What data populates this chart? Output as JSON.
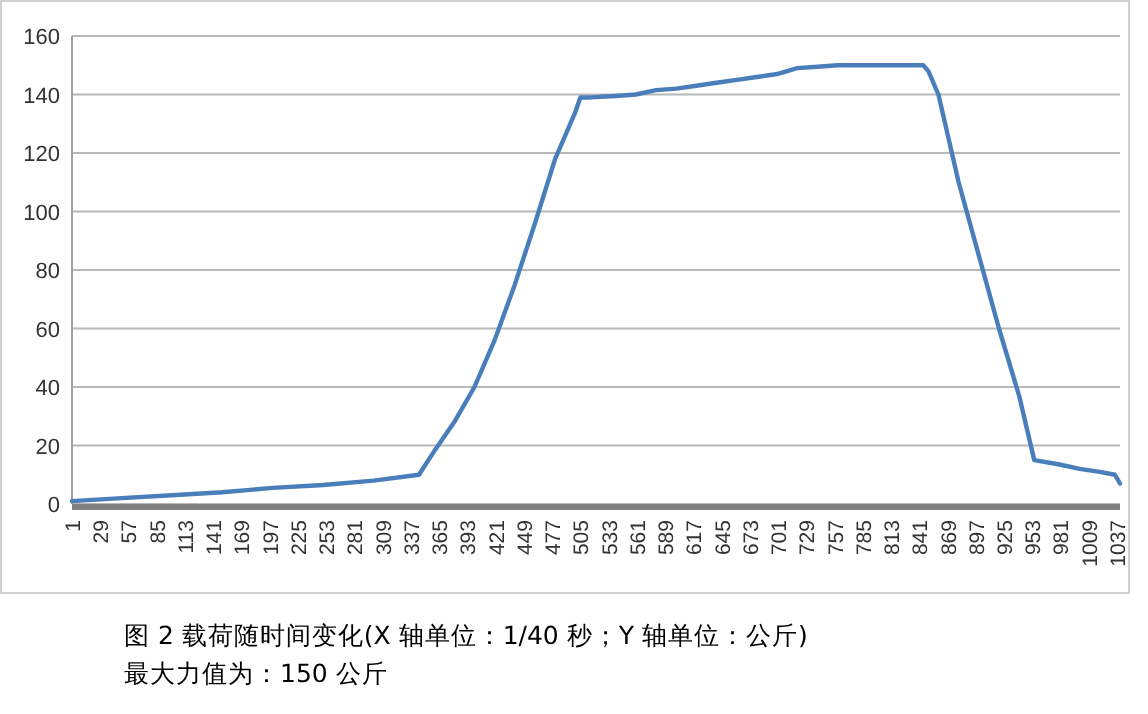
{
  "chart_data": {
    "type": "line",
    "x": [
      1,
      50,
      100,
      150,
      200,
      250,
      300,
      345,
      360,
      380,
      400,
      420,
      440,
      460,
      480,
      500,
      505,
      515,
      540,
      560,
      580,
      600,
      620,
      640,
      660,
      680,
      700,
      710,
      720,
      740,
      760,
      800,
      845,
      850,
      860,
      880,
      900,
      920,
      940,
      955,
      980,
      1000,
      1020,
      1035,
      1040
    ],
    "series": [
      {
        "color": "#4a7ebb",
        "values": [
          1,
          2,
          3,
          4,
          5.5,
          6.5,
          8,
          10,
          18,
          28,
          40,
          56,
          75,
          96,
          118,
          134,
          139,
          139,
          139.5,
          140,
          141.5,
          142,
          143,
          144,
          145,
          146,
          147,
          148,
          149,
          149.5,
          150,
          150,
          150,
          148,
          140,
          110,
          85,
          60,
          37,
          15,
          13.5,
          12,
          11,
          10,
          7
        ]
      }
    ],
    "ylim": [
      0,
      160
    ],
    "yticks": [
      0,
      20,
      40,
      60,
      80,
      100,
      120,
      140,
      160
    ],
    "xlim": [
      1,
      1040
    ],
    "xticks": [
      1,
      29,
      57,
      85,
      113,
      141,
      169,
      197,
      225,
      253,
      281,
      309,
      337,
      365,
      393,
      421,
      449,
      477,
      505,
      533,
      561,
      589,
      617,
      645,
      673,
      701,
      729,
      757,
      785,
      813,
      841,
      869,
      897,
      925,
      953,
      981,
      1009,
      1037
    ],
    "grid": "y",
    "marker": "none",
    "line_style": "solid",
    "annotations": [
      "图 2 载荷随时间变化(X 轴单位：1/40 秒；Y 轴单位：公斤)",
      "最大力值为：150 公斤"
    ]
  }
}
